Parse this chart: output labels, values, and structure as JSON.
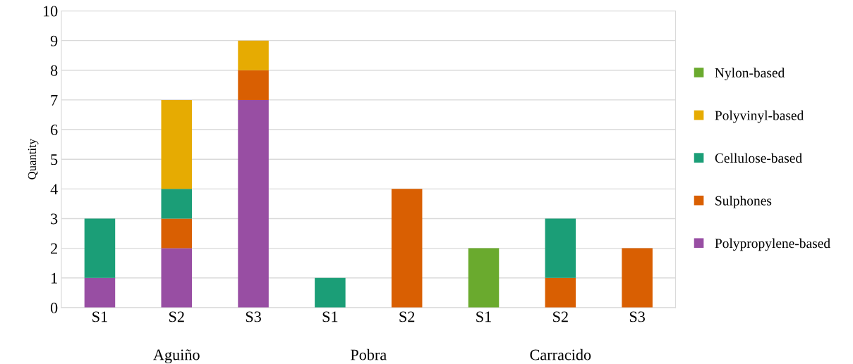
{
  "chart_data": {
    "type": "bar",
    "stacked": true,
    "ylabel": "Quantity",
    "categories": [
      "S1",
      "S2",
      "S3",
      "S1",
      "S2",
      "S1",
      "S2",
      "S3"
    ],
    "series": [
      {
        "name": "Polypropylene-based",
        "color": "#984ea3",
        "values": [
          1,
          2,
          7,
          0,
          0,
          0,
          0,
          0
        ]
      },
      {
        "name": "Sulphones",
        "color": "#d95f02",
        "values": [
          0,
          1,
          1,
          0,
          4,
          0,
          1,
          2
        ]
      },
      {
        "name": "Cellulose-based",
        "color": "#1b9e77",
        "values": [
          2,
          1,
          0,
          1,
          0,
          0,
          2,
          0
        ]
      },
      {
        "name": "Polyvinyl-based",
        "color": "#e6ab02",
        "values": [
          0,
          3,
          1,
          0,
          0,
          0,
          0,
          0
        ]
      },
      {
        "name": "Nylon-based",
        "color": "#6aaa2e",
        "values": [
          0,
          0,
          0,
          0,
          0,
          2,
          0,
          0
        ]
      }
    ],
    "annotations": [
      "Aguiño",
      "Pobra",
      "Carracido"
    ],
    "ylim": [
      0,
      10
    ],
    "yticks": [
      0,
      1,
      2,
      3,
      4,
      5,
      6,
      7,
      8,
      9,
      10
    ],
    "grid": "y",
    "legend": "right"
  }
}
